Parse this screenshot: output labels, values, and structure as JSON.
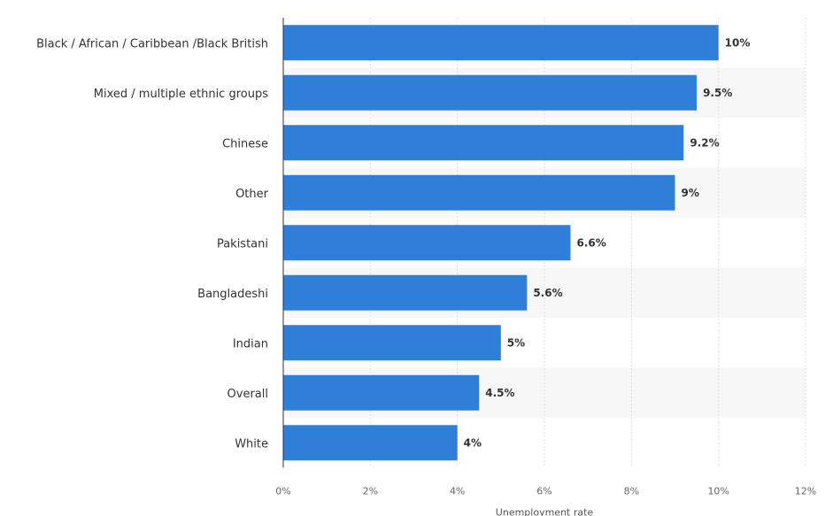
{
  "chart_data": {
    "type": "bar",
    "orientation": "horizontal",
    "categories": [
      "Black / African / Caribbean /Black British",
      "Mixed / multiple ethnic groups",
      "Chinese",
      "Other",
      "Pakistani",
      "Bangladeshi",
      "Indian",
      "Overall",
      "White"
    ],
    "values": [
      10,
      9.5,
      9.2,
      9,
      6.6,
      5.6,
      5,
      4.5,
      4
    ],
    "value_labels": [
      "10%",
      "9.5%",
      "9.2%",
      "9%",
      "6.6%",
      "5.6%",
      "5%",
      "4.5%",
      "4%"
    ],
    "title": "",
    "xlabel": "Unemployment rate",
    "ylabel": "",
    "xlim": [
      0,
      12
    ],
    "x_ticks": [
      0,
      2,
      4,
      6,
      8,
      10,
      12
    ],
    "x_tick_labels": [
      "0%",
      "2%",
      "4%",
      "6%",
      "8%",
      "10%",
      "12%"
    ],
    "grid": true,
    "legend": "none",
    "colors": {
      "bar": "#2f7ed8",
      "band": "#f7f7f7",
      "grid": "#e0e0e0",
      "axis": "#333333"
    }
  }
}
